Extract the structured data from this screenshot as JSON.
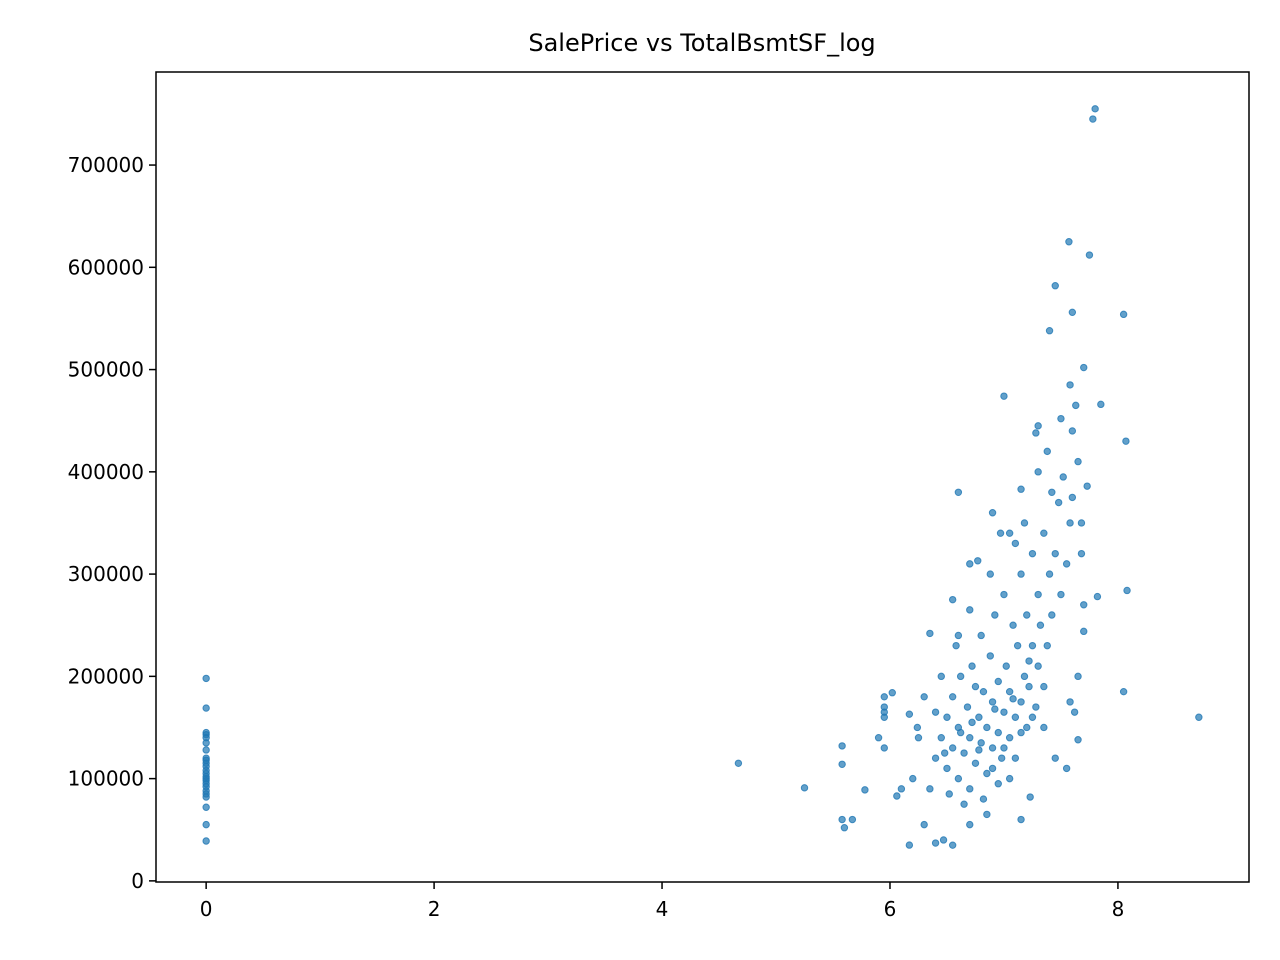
{
  "chart_data": {
    "type": "scatter",
    "title": "SalePrice vs TotalBsmtSF_log",
    "color": "#1f77b4",
    "x": [
      0,
      0,
      0,
      0,
      0,
      0,
      0,
      0,
      0,
      0,
      0,
      0,
      0,
      0,
      0,
      0,
      0,
      0,
      0,
      0,
      0,
      0,
      0,
      0,
      4.67,
      5.25,
      5.58,
      5.58,
      5.58,
      5.6,
      5.67,
      5.78,
      5.9,
      5.95,
      5.95,
      5.95,
      5.95,
      5.95,
      6.02,
      6.06,
      6.1,
      6.17,
      6.17,
      6.2,
      6.24,
      6.3,
      6.35,
      6.4,
      6.47,
      6.55,
      6.6,
      6.55,
      6.7,
      6.77,
      6.9,
      7.0,
      7.05,
      7.15,
      7.3,
      7.28,
      7.4,
      7.45,
      7.5,
      7.57,
      7.58,
      7.6,
      7.6,
      7.63,
      7.7,
      7.75,
      7.78,
      7.8,
      7.85,
      8.05,
      8.07,
      8.08,
      8.05,
      8.71,
      7.82,
      7.7,
      7.65,
      7.68,
      7.73,
      7.15,
      7.23,
      6.85,
      6.7,
      7.45,
      7.55,
      7.65,
      7.58,
      7.62,
      6.4,
      6.45,
      6.5,
      6.5,
      6.55,
      6.55,
      6.6,
      6.6,
      6.62,
      6.65,
      6.68,
      6.7,
      6.7,
      6.72,
      6.75,
      6.78,
      6.8,
      6.8,
      6.82,
      6.85,
      6.85,
      6.88,
      6.9,
      6.9,
      6.92,
      6.95,
      6.95,
      6.98,
      7.0,
      7.0,
      7.02,
      7.05,
      7.05,
      7.08,
      7.1,
      7.1,
      7.12,
      7.15,
      7.15,
      7.18,
      7.2,
      7.2,
      7.22,
      7.25,
      7.25,
      7.28,
      7.3,
      7.3,
      7.32,
      7.35,
      7.35,
      7.38,
      7.4,
      7.42,
      7.45,
      7.48,
      7.5,
      7.52,
      7.55,
      7.58,
      7.6,
      7.65,
      7.68,
      7.7,
      6.35,
      6.45,
      6.52,
      6.58,
      6.65,
      6.75,
      6.82,
      6.95,
      7.05,
      7.1,
      6.7,
      6.6,
      6.88,
      6.97,
      7.18,
      7.3,
      7.38,
      7.42,
      6.3,
      6.25,
      6.4,
      6.48,
      6.9,
      7.0,
      7.15,
      7.25,
      7.35,
      6.62,
      6.72,
      6.78,
      6.92,
      7.08,
      7.22
    ],
    "values": [
      198000,
      169000,
      145000,
      143000,
      140000,
      135000,
      128000,
      120000,
      118000,
      115000,
      112000,
      108000,
      105000,
      102000,
      100000,
      98000,
      95000,
      92000,
      88000,
      85000,
      82000,
      72000,
      55000,
      39000,
      115000,
      91000,
      132000,
      114000,
      60000,
      52000,
      60000,
      89000,
      140000,
      130000,
      180000,
      170000,
      165000,
      160000,
      184000,
      83000,
      90000,
      35000,
      163000,
      100000,
      150000,
      55000,
      242000,
      37000,
      40000,
      34900,
      380000,
      275000,
      310000,
      313000,
      360000,
      474000,
      340000,
      383000,
      445000,
      438000,
      538000,
      582000,
      452000,
      625000,
      485000,
      556000,
      440000,
      465000,
      502000,
      612000,
      745000,
      755000,
      466000,
      554000,
      430000,
      284000,
      185000,
      160000,
      278000,
      244000,
      138000,
      350000,
      386000,
      60000,
      82000,
      65000,
      55000,
      120000,
      110000,
      200000,
      175000,
      165000,
      120000,
      140000,
      160000,
      110000,
      180000,
      130000,
      150000,
      100000,
      200000,
      125000,
      170000,
      140000,
      90000,
      210000,
      115000,
      160000,
      135000,
      240000,
      185000,
      105000,
      150000,
      220000,
      130000,
      175000,
      260000,
      145000,
      195000,
      120000,
      165000,
      280000,
      210000,
      140000,
      185000,
      250000,
      160000,
      120000,
      230000,
      175000,
      300000,
      200000,
      150000,
      260000,
      190000,
      230000,
      320000,
      170000,
      210000,
      280000,
      250000,
      190000,
      340000,
      230000,
      300000,
      260000,
      320000,
      370000,
      280000,
      395000,
      310000,
      350000,
      375000,
      410000,
      320000,
      270000,
      90000,
      200000,
      85000,
      230000,
      75000,
      190000,
      80000,
      95000,
      100000,
      330000,
      265000,
      240000,
      300000,
      340000,
      350000,
      400000,
      420000,
      380000,
      180000,
      140000,
      165000,
      125000,
      110000,
      130000,
      145000,
      160000,
      150000,
      145000,
      155000,
      128000,
      168000,
      178000,
      215000
    ],
    "xlim": [
      -0.44,
      9.15
    ],
    "ylim": [
      -1100,
      791000
    ],
    "xticks": [
      0,
      2,
      4,
      6,
      8
    ],
    "yticks": [
      0,
      100000,
      200000,
      300000,
      400000,
      500000,
      600000,
      700000
    ]
  }
}
